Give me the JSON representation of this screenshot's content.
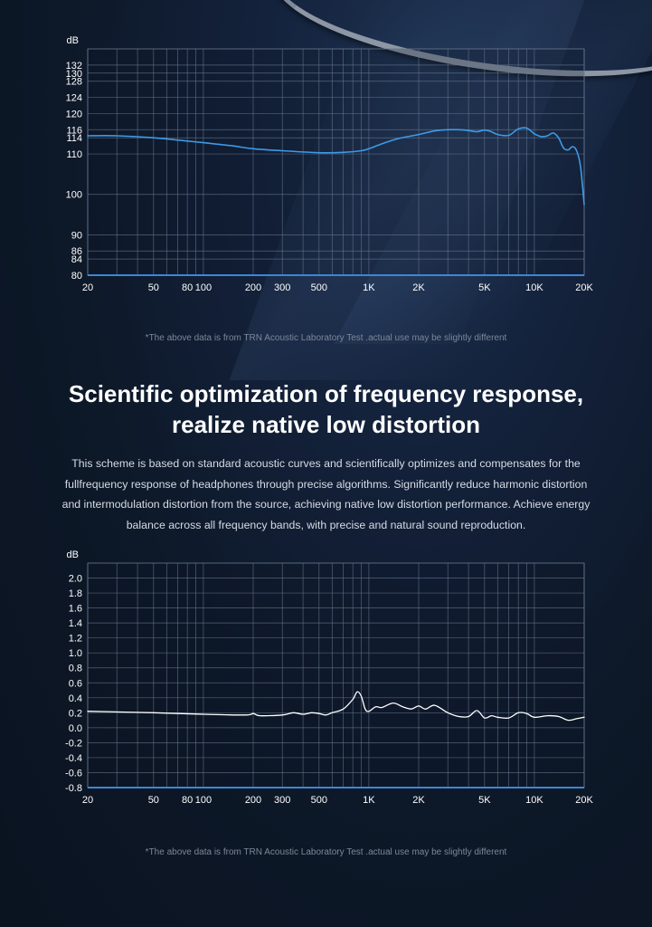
{
  "note_top": "*The above data is from TRN Acoustic Laboratory Test .actual use may be slightly different",
  "note_bottom": "*The above data is from TRN Acoustic Laboratory Test .actual use may be slightly different",
  "headline": {
    "line1": "Scientific optimization of frequency response,",
    "line2": "realize native low distortion"
  },
  "body_lines": [
    "This scheme is based on standard acoustic curves and scientifically optimizes and compensates for the",
    "fullfrequency response of headphones through precise algorithms. Significantly reduce harmonic distortion",
    "and intermodulation distortion from the source, achieving native low distortion performance. Achieve energy",
    "balance across all frequency bands, with precise and natural sound reproduction."
  ],
  "colors": {
    "curve_top": "#3d9ae6",
    "curve_bottom": "#ffffff",
    "grid": "#6b7a90",
    "axis": "#3d86d6"
  },
  "chart_data": [
    {
      "type": "line",
      "ylabel": "dB",
      "xscale": "log",
      "xlim": [
        20,
        20000
      ],
      "ylim": [
        80,
        136
      ],
      "grid": true,
      "x_ticks": [
        20,
        50,
        80,
        100,
        200,
        300,
        500,
        1000,
        2000,
        5000,
        10000,
        20000
      ],
      "x_tick_labels": [
        "20",
        "50",
        "80",
        "100",
        "200",
        "300",
        "500",
        "1K",
        "2K",
        "5K",
        "10K",
        "20K"
      ],
      "y_ticks": [
        80,
        84,
        86,
        90,
        100,
        110,
        114,
        116,
        120,
        124,
        128,
        130,
        132
      ],
      "y_tick_labels": [
        "80",
        "84",
        "86",
        "90",
        "100",
        "110",
        "114",
        "116",
        "120",
        "124",
        "128",
        "130",
        "132"
      ],
      "series": [
        {
          "x": [
            20,
            30,
            50,
            80,
            100,
            150,
            200,
            300,
            500,
            700,
            900,
            1000,
            1200,
            1500,
            2000,
            2500,
            3000,
            3500,
            4000,
            4500,
            5000,
            5500,
            6000,
            7000,
            8000,
            9000,
            10000,
            11000,
            12000,
            13000,
            14000,
            15000,
            16000,
            17000,
            18000,
            19000,
            20000
          ],
          "y": [
            114.5,
            114.5,
            114.0,
            113.2,
            112.8,
            112.0,
            111.3,
            110.8,
            110.3,
            110.4,
            110.8,
            111.3,
            112.5,
            113.8,
            114.8,
            115.7,
            116.0,
            116.0,
            115.8,
            115.5,
            115.9,
            115.5,
            114.8,
            114.6,
            116.2,
            116.4,
            115.0,
            114.3,
            114.5,
            115.2,
            114.0,
            111.5,
            111.0,
            111.8,
            110.8,
            107.0,
            97.5
          ]
        }
      ]
    },
    {
      "type": "line",
      "ylabel": "dB",
      "xscale": "log",
      "xlim": [
        20,
        20000
      ],
      "ylim": [
        -0.8,
        2.2
      ],
      "grid": true,
      "x_ticks": [
        20,
        50,
        80,
        100,
        200,
        300,
        500,
        1000,
        2000,
        5000,
        10000,
        20000
      ],
      "x_tick_labels": [
        "20",
        "50",
        "80",
        "100",
        "200",
        "300",
        "500",
        "1K",
        "2K",
        "5K",
        "10K",
        "20K"
      ],
      "y_ticks": [
        -0.8,
        -0.6,
        -0.4,
        -0.2,
        0.0,
        0.2,
        0.4,
        0.6,
        0.8,
        1.0,
        1.2,
        1.4,
        1.6,
        1.8,
        2.0
      ],
      "y_tick_labels": [
        "-0.8",
        "-0.6",
        "-0.4",
        "-0.2",
        "0.0",
        "0.2",
        "0.4",
        "0.6",
        "0.8",
        "1.0",
        "1.2",
        "1.4",
        "1.6",
        "1.8",
        "2.0"
      ],
      "series": [
        {
          "x": [
            20,
            50,
            100,
            180,
            200,
            220,
            300,
            350,
            400,
            450,
            500,
            550,
            600,
            700,
            800,
            850,
            900,
            950,
            1000,
            1100,
            1200,
            1400,
            1600,
            1800,
            2000,
            2200,
            2500,
            3000,
            3500,
            4000,
            4500,
            5000,
            5500,
            6000,
            7000,
            8000,
            9000,
            10000,
            12000,
            14000,
            16000,
            18000,
            20000
          ],
          "y": [
            0.22,
            0.2,
            0.18,
            0.17,
            0.19,
            0.16,
            0.17,
            0.2,
            0.18,
            0.2,
            0.19,
            0.17,
            0.2,
            0.25,
            0.38,
            0.48,
            0.42,
            0.25,
            0.22,
            0.28,
            0.27,
            0.33,
            0.28,
            0.25,
            0.29,
            0.25,
            0.3,
            0.2,
            0.15,
            0.15,
            0.23,
            0.13,
            0.16,
            0.14,
            0.13,
            0.2,
            0.19,
            0.14,
            0.16,
            0.15,
            0.1,
            0.12,
            0.14
          ]
        }
      ]
    }
  ]
}
